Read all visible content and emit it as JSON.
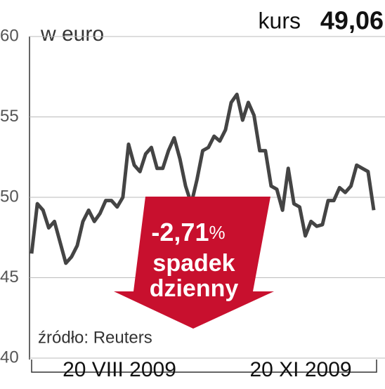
{
  "chart_data": {
    "type": "line",
    "headline_label": "kurs",
    "headline_value": "49,06",
    "unit": "w euro",
    "annotation": {
      "change": "-2,71",
      "change_unit": "%",
      "line1": "spadek",
      "line2": "dzienny"
    },
    "source": "źródło: Reuters",
    "x_labels": [
      "20 VIII 2009",
      "20 XI 2009"
    ],
    "values": [
      46.5,
      49.6,
      49.2,
      48.1,
      48.5,
      47.2,
      45.9,
      46.3,
      47.0,
      48.5,
      49.2,
      48.5,
      49.0,
      49.8,
      49.8,
      49.4,
      50.0,
      53.3,
      52.0,
      51.6,
      52.7,
      53.1,
      51.8,
      51.8,
      52.9,
      53.7,
      52.4,
      50.7,
      49.6,
      51.1,
      52.9,
      53.1,
      53.8,
      53.5,
      54.2,
      55.9,
      56.4,
      54.8,
      55.9,
      55.1,
      52.9,
      52.9,
      50.7,
      50.5,
      49.2,
      51.8,
      49.6,
      49.4,
      47.6,
      48.5,
      48.2,
      48.3,
      49.8,
      49.8,
      50.6,
      50.3,
      50.7,
      52.0,
      51.8,
      51.6,
      49.2
    ],
    "color": "#444444",
    "ylim": [
      40,
      60
    ],
    "yticks": [
      40,
      45,
      50,
      55,
      60
    ],
    "grid": true
  }
}
